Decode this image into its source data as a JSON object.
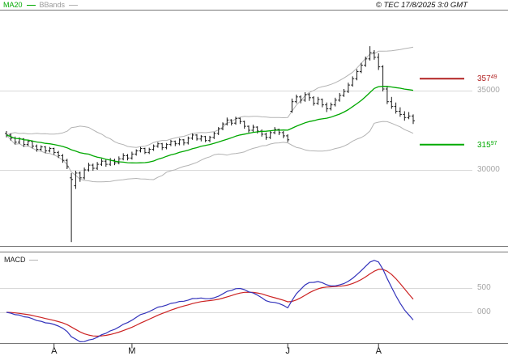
{
  "header": {
    "legend": [
      {
        "label": "MA20",
        "color": "#00a800"
      },
      {
        "label": "BBands",
        "color": "#999999"
      }
    ],
    "copyright": "© TEC 17/8/2025 3:0 GMT"
  },
  "colors": {
    "ma20": "#00a800",
    "bbands": "#b3b3b3",
    "grid": "#d9d9d9",
    "candle": "#1a1a1a",
    "border": "#777777",
    "macd_line": "#3333bb",
    "macd_signal": "#cc2222",
    "axis_text": "#a6a6a6"
  },
  "chart_data": {
    "type": "ohlc-bars with MA20, Bollinger Bands and MACD sub-panel",
    "price_panel": {
      "ylabels": [
        {
          "text": "35000",
          "value": 35000
        },
        {
          "text": "30000",
          "value": 30000
        }
      ],
      "y_range_approx": [
        25200,
        40100
      ],
      "levels": [
        {
          "text": "357",
          "sup": "49",
          "value": 35749,
          "color": "#b22222"
        },
        {
          "text": "315",
          "sup": "97",
          "value": 31597,
          "color": "#00aa00"
        }
      ],
      "indicators": {
        "bb_period": 20,
        "bb_stddev": 2,
        "macd_fast": 12,
        "macd_slow": 26,
        "macd_signal": 9
      },
      "ohlc": [
        [
          32300,
          32450,
          32050,
          32200
        ],
        [
          32200,
          32300,
          31850,
          32000
        ],
        [
          32000,
          32100,
          31600,
          31750
        ],
        [
          31750,
          32050,
          31650,
          31950
        ],
        [
          31950,
          32000,
          31450,
          31600
        ],
        [
          31600,
          31900,
          31500,
          31800
        ],
        [
          31800,
          31850,
          31350,
          31500
        ],
        [
          31500,
          31600,
          31150,
          31300
        ],
        [
          31300,
          31550,
          31200,
          31450
        ],
        [
          31450,
          31500,
          31050,
          31200
        ],
        [
          31200,
          31450,
          31100,
          31350
        ],
        [
          31350,
          31400,
          30950,
          31100
        ],
        [
          31100,
          31200,
          30750,
          30900
        ],
        [
          30900,
          31000,
          30450,
          30600
        ],
        [
          30600,
          30700,
          30050,
          30200
        ],
        [
          29500,
          29800,
          25450,
          29400
        ],
        [
          29000,
          29950,
          28800,
          29800
        ],
        [
          29800,
          29900,
          29250,
          29500
        ],
        [
          29500,
          30150,
          29400,
          30000
        ],
        [
          30000,
          30450,
          29900,
          30300
        ],
        [
          30300,
          30400,
          29950,
          30100
        ],
        [
          30100,
          30500,
          30000,
          30350
        ],
        [
          30350,
          30700,
          30250,
          30550
        ],
        [
          30550,
          30650,
          30200,
          30350
        ],
        [
          30350,
          30750,
          30250,
          30600
        ],
        [
          30600,
          30700,
          30300,
          30450
        ],
        [
          30450,
          30850,
          30350,
          30700
        ],
        [
          30700,
          31050,
          30600,
          30900
        ],
        [
          30900,
          31000,
          30600,
          30750
        ],
        [
          30750,
          31150,
          30650,
          31000
        ],
        [
          31000,
          31300,
          30900,
          31200
        ],
        [
          31200,
          31450,
          31100,
          31350
        ],
        [
          31350,
          31400,
          31000,
          31100
        ],
        [
          31100,
          31400,
          31000,
          31300
        ],
        [
          31300,
          31600,
          31200,
          31500
        ],
        [
          31500,
          31750,
          31400,
          31650
        ],
        [
          31650,
          31700,
          31250,
          31400
        ],
        [
          31400,
          31700,
          31300,
          31600
        ],
        [
          31600,
          31900,
          31500,
          31800
        ],
        [
          31800,
          31850,
          31500,
          31650
        ],
        [
          31650,
          32000,
          31550,
          31900
        ],
        [
          31900,
          31950,
          31550,
          31700
        ],
        [
          31700,
          32100,
          31600,
          32000
        ],
        [
          32000,
          32300,
          31900,
          32200
        ],
        [
          32200,
          32250,
          31850,
          31950
        ],
        [
          31950,
          32200,
          31800,
          32100
        ],
        [
          32100,
          32150,
          31750,
          31850
        ],
        [
          31850,
          32150,
          31750,
          32050
        ],
        [
          32050,
          32400,
          31950,
          32300
        ],
        [
          32300,
          32700,
          32200,
          32600
        ],
        [
          32600,
          33000,
          32500,
          32900
        ],
        [
          32900,
          33300,
          32800,
          33150
        ],
        [
          33150,
          33200,
          32800,
          32950
        ],
        [
          32950,
          33350,
          32850,
          33250
        ],
        [
          33250,
          33300,
          32900,
          33050
        ],
        [
          33050,
          33100,
          32600,
          32750
        ],
        [
          32750,
          32800,
          32350,
          32500
        ],
        [
          32500,
          32850,
          32400,
          32700
        ],
        [
          32700,
          32750,
          32300,
          32450
        ],
        [
          32450,
          32550,
          32100,
          32250
        ],
        [
          32250,
          32350,
          31900,
          32050
        ],
        [
          32050,
          32450,
          31950,
          32350
        ],
        [
          32350,
          32700,
          32250,
          32550
        ],
        [
          32550,
          32600,
          32200,
          32350
        ],
        [
          32350,
          32450,
          32000,
          32150
        ],
        [
          32150,
          32250,
          31750,
          31900
        ],
        [
          33700,
          34500,
          33600,
          34300
        ],
        [
          34300,
          34750,
          34200,
          34600
        ],
        [
          34600,
          34700,
          34200,
          34400
        ],
        [
          34400,
          34900,
          34300,
          34750
        ],
        [
          34750,
          34850,
          34350,
          34550
        ],
        [
          34550,
          34650,
          34050,
          34200
        ],
        [
          34200,
          34600,
          34100,
          34450
        ],
        [
          34450,
          34500,
          33950,
          34100
        ],
        [
          34100,
          34250,
          33650,
          33850
        ],
        [
          33850,
          34250,
          33750,
          34100
        ],
        [
          34100,
          34550,
          34000,
          34400
        ],
        [
          34400,
          34850,
          34300,
          34700
        ],
        [
          34700,
          35100,
          34600,
          34950
        ],
        [
          34950,
          35500,
          34850,
          35350
        ],
        [
          35350,
          35900,
          35250,
          35750
        ],
        [
          35750,
          36350,
          35650,
          36200
        ],
        [
          36200,
          36750,
          36100,
          36600
        ],
        [
          36600,
          37150,
          36500,
          37000
        ],
        [
          37000,
          37800,
          36900,
          37400
        ],
        [
          37400,
          37550,
          36950,
          37100
        ],
        [
          37100,
          37350,
          36300,
          36500
        ],
        [
          36500,
          36600,
          34950,
          35100
        ],
        [
          35100,
          35300,
          34150,
          34300
        ],
        [
          34300,
          34600,
          33850,
          34000
        ],
        [
          34000,
          34250,
          33550,
          33700
        ],
        [
          33700,
          33950,
          33350,
          33500
        ],
        [
          33500,
          33700,
          33100,
          33300
        ],
        [
          33300,
          33650,
          33200,
          33400
        ],
        [
          33400,
          33500,
          32900,
          33100
        ]
      ]
    },
    "macd_panel": {
      "label": "MACD",
      "ylabels": [
        {
          "text": "500",
          "value": 500
        },
        {
          "text": "000",
          "value": 0
        }
      ]
    },
    "x_axis": {
      "months": [
        {
          "label": "A",
          "bar": 11
        },
        {
          "label": "M",
          "bar": 29
        },
        {
          "label": "J",
          "bar": 65
        },
        {
          "label": "A",
          "bar": 86
        }
      ]
    }
  }
}
